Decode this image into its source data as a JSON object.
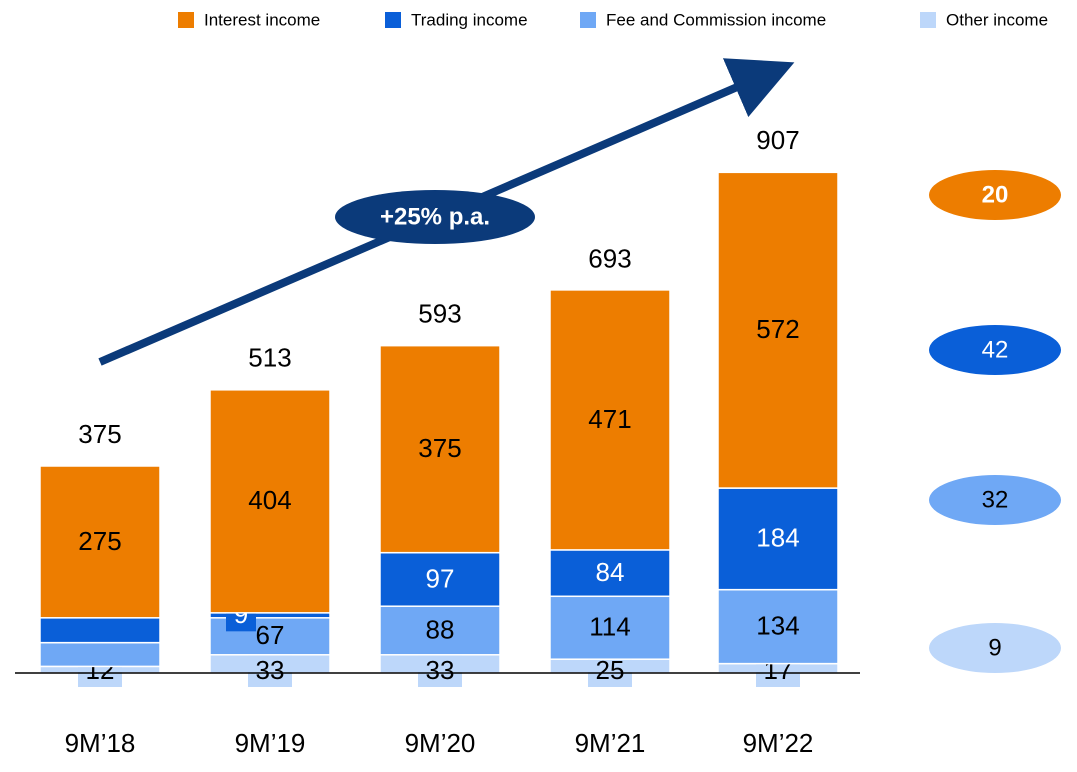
{
  "chart_data": {
    "type": "stacked_bar",
    "categories": [
      "9M’18",
      "9M’19",
      "9M’20",
      "9M’21",
      "9M’22"
    ],
    "series": [
      {
        "name": "Interest income",
        "color": "#ED7D00",
        "values": [
          275,
          404,
          375,
          471,
          572
        ]
      },
      {
        "name": "Trading income",
        "color": "#0A5FD8",
        "values": [
          45,
          9,
          97,
          84,
          184
        ],
        "value_labels": [
          null,
          "9",
          "97",
          "84",
          "184"
        ]
      },
      {
        "name": "Fee and Commission income",
        "color": "#6FA8F5",
        "values": [
          43,
          67,
          88,
          114,
          134
        ],
        "value_labels": [
          null,
          "67",
          "88",
          "114",
          "134"
        ]
      },
      {
        "name": "Other income",
        "color": "#BDD7FA",
        "values": [
          12,
          33,
          33,
          25,
          17
        ]
      }
    ],
    "totals": [
      375,
      513,
      593,
      693,
      907
    ],
    "annotation": "+25% p.a.",
    "side_labels": [
      20,
      42,
      32,
      9
    ]
  }
}
